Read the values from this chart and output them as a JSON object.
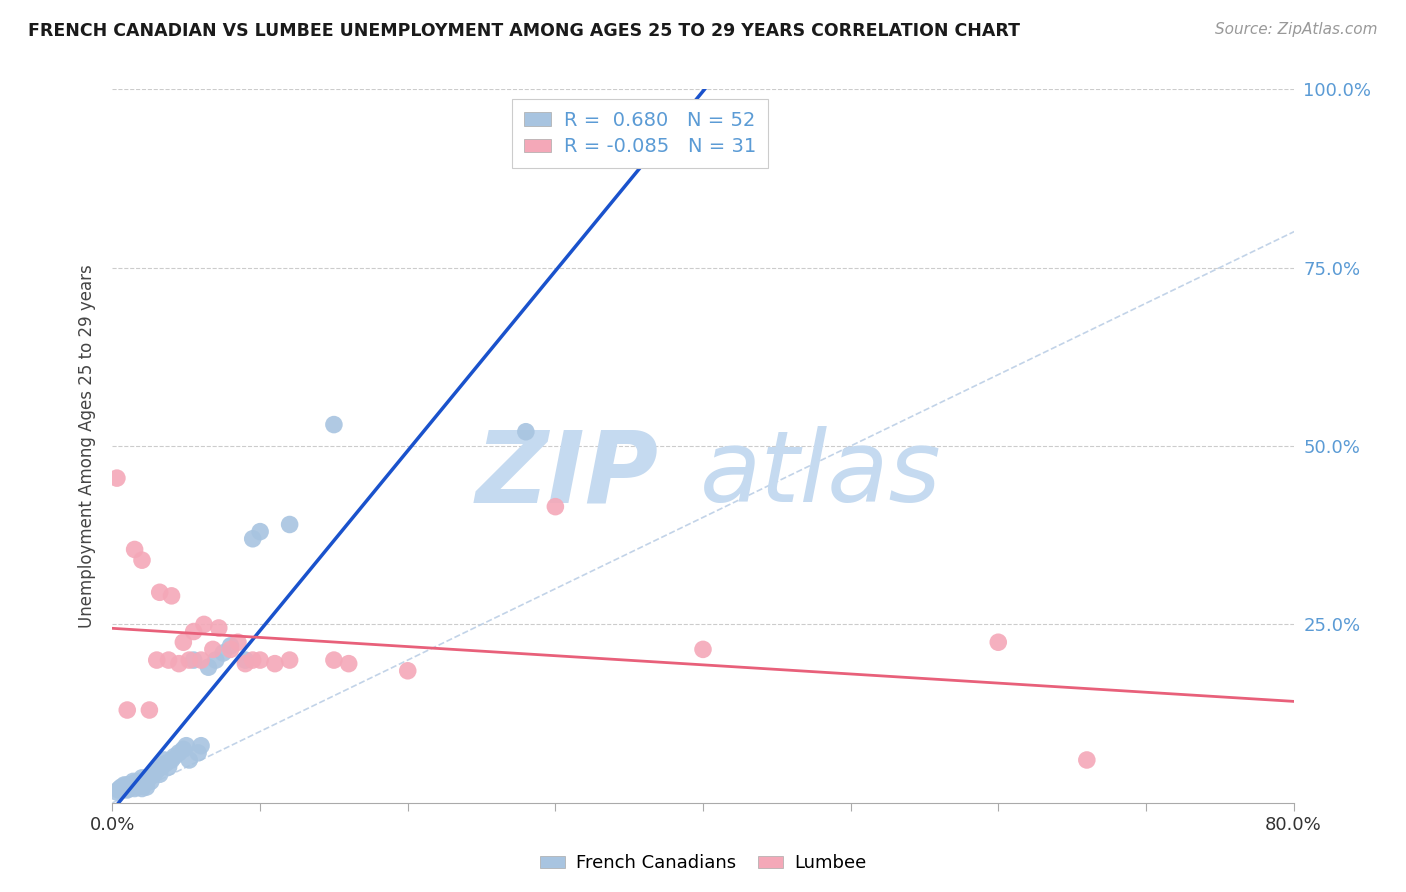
{
  "title": "FRENCH CANADIAN VS LUMBEE UNEMPLOYMENT AMONG AGES 25 TO 29 YEARS CORRELATION CHART",
  "source": "Source: ZipAtlas.com",
  "ylabel": "Unemployment Among Ages 25 to 29 years",
  "xlim": [
    0.0,
    0.8
  ],
  "ylim": [
    0.0,
    1.0
  ],
  "yticks": [
    0.0,
    0.25,
    0.5,
    0.75,
    1.0
  ],
  "ytick_labels": [
    "",
    "25.0%",
    "50.0%",
    "75.0%",
    "100.0%"
  ],
  "r_french": 0.68,
  "n_french": 52,
  "r_lumbee": -0.085,
  "n_lumbee": 31,
  "french_scatter_color": "#a8c4e0",
  "lumbee_scatter_color": "#f4a8b8",
  "french_line_color": "#1a52cc",
  "lumbee_line_color": "#e8607a",
  "diagonal_color": "#b8cce4",
  "background_color": "#ffffff",
  "grid_color": "#cccccc",
  "ytick_color": "#5b9bd5",
  "french_scatter_x": [
    0.003,
    0.004,
    0.005,
    0.006,
    0.007,
    0.008,
    0.009,
    0.01,
    0.01,
    0.011,
    0.012,
    0.013,
    0.014,
    0.015,
    0.015,
    0.016,
    0.017,
    0.018,
    0.019,
    0.02,
    0.02,
    0.021,
    0.022,
    0.023,
    0.025,
    0.026,
    0.028,
    0.03,
    0.032,
    0.033,
    0.035,
    0.036,
    0.038,
    0.04,
    0.042,
    0.045,
    0.048,
    0.05,
    0.052,
    0.055,
    0.058,
    0.06,
    0.065,
    0.07,
    0.075,
    0.08,
    0.09,
    0.095,
    0.1,
    0.12,
    0.15,
    0.28
  ],
  "french_scatter_y": [
    0.015,
    0.018,
    0.02,
    0.022,
    0.018,
    0.025,
    0.02,
    0.018,
    0.025,
    0.02,
    0.025,
    0.022,
    0.03,
    0.02,
    0.028,
    0.025,
    0.022,
    0.03,
    0.025,
    0.02,
    0.035,
    0.03,
    0.028,
    0.022,
    0.035,
    0.03,
    0.04,
    0.045,
    0.04,
    0.05,
    0.06,
    0.055,
    0.05,
    0.06,
    0.065,
    0.07,
    0.075,
    0.08,
    0.06,
    0.2,
    0.07,
    0.08,
    0.19,
    0.2,
    0.21,
    0.22,
    0.2,
    0.37,
    0.38,
    0.39,
    0.53,
    0.52
  ],
  "lumbee_scatter_x": [
    0.003,
    0.01,
    0.015,
    0.02,
    0.025,
    0.03,
    0.032,
    0.038,
    0.04,
    0.045,
    0.048,
    0.052,
    0.055,
    0.06,
    0.062,
    0.068,
    0.072,
    0.08,
    0.085,
    0.09,
    0.095,
    0.1,
    0.11,
    0.12,
    0.15,
    0.16,
    0.2,
    0.3,
    0.4,
    0.6,
    0.66
  ],
  "lumbee_scatter_y": [
    0.455,
    0.13,
    0.355,
    0.34,
    0.13,
    0.2,
    0.295,
    0.2,
    0.29,
    0.195,
    0.225,
    0.2,
    0.24,
    0.2,
    0.25,
    0.215,
    0.245,
    0.215,
    0.225,
    0.195,
    0.2,
    0.2,
    0.195,
    0.2,
    0.2,
    0.195,
    0.185,
    0.415,
    0.215,
    0.225,
    0.06
  ]
}
